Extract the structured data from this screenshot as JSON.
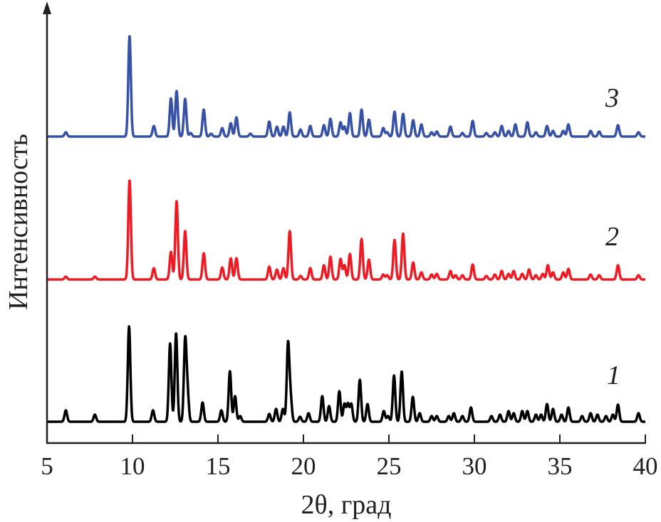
{
  "chart_data": {
    "type": "line",
    "title": "",
    "xlabel": "2θ, град",
    "ylabel": "Интенсивность",
    "xlim": [
      5,
      40
    ],
    "ylim": [
      0,
      618
    ],
    "x_ticks": [
      "5",
      "10",
      "15",
      "20",
      "25",
      "30",
      "35",
      "40"
    ],
    "x_tick_values": [
      5,
      10,
      15,
      20,
      25,
      30,
      35,
      40
    ],
    "y_ticks": [],
    "grid": false,
    "legend": "none; curves labelled inline at right",
    "peak_sigma_deg": 0.075,
    "series": [
      {
        "name": "1",
        "label": "1",
        "color": "#000000",
        "baseline": 30,
        "peaks": [
          [
            6.1,
            16
          ],
          [
            7.8,
            10
          ],
          [
            9.8,
            134
          ],
          [
            11.2,
            16
          ],
          [
            12.2,
            110
          ],
          [
            12.55,
            125
          ],
          [
            13.08,
            113
          ],
          [
            13.22,
            40
          ],
          [
            14.1,
            27
          ],
          [
            15.2,
            16
          ],
          [
            15.7,
            71
          ],
          [
            16.0,
            36
          ],
          [
            16.3,
            8
          ],
          [
            18.0,
            11
          ],
          [
            18.4,
            18
          ],
          [
            18.8,
            18
          ],
          [
            19.1,
            109
          ],
          [
            19.25,
            33
          ],
          [
            19.8,
            7
          ],
          [
            20.3,
            12
          ],
          [
            21.1,
            36
          ],
          [
            21.5,
            22
          ],
          [
            22.1,
            43
          ],
          [
            22.4,
            25
          ],
          [
            22.6,
            25
          ],
          [
            22.8,
            25
          ],
          [
            23.3,
            59
          ],
          [
            23.75,
            25
          ],
          [
            24.7,
            15
          ],
          [
            24.95,
            8
          ],
          [
            25.3,
            65
          ],
          [
            25.75,
            71
          ],
          [
            26.4,
            35
          ],
          [
            26.8,
            12
          ],
          [
            27.5,
            8
          ],
          [
            27.8,
            8
          ],
          [
            28.5,
            8
          ],
          [
            28.8,
            12
          ],
          [
            29.3,
            8
          ],
          [
            29.8,
            20
          ],
          [
            31.0,
            8
          ],
          [
            31.5,
            10
          ],
          [
            32.0,
            15
          ],
          [
            32.3,
            12
          ],
          [
            32.8,
            15
          ],
          [
            33.1,
            15
          ],
          [
            33.6,
            10
          ],
          [
            33.9,
            10
          ],
          [
            34.25,
            25
          ],
          [
            34.6,
            18
          ],
          [
            35.1,
            10
          ],
          [
            35.5,
            20
          ],
          [
            36.3,
            8
          ],
          [
            36.8,
            12
          ],
          [
            37.2,
            10
          ],
          [
            37.7,
            8
          ],
          [
            38.1,
            10
          ],
          [
            38.4,
            24
          ],
          [
            39.6,
            12
          ]
        ]
      },
      {
        "name": "2",
        "label": "2",
        "color": "#ed1c24",
        "baseline": 230,
        "peaks": [
          [
            6.1,
            4
          ],
          [
            7.8,
            4
          ],
          [
            9.83,
            140
          ],
          [
            11.25,
            16
          ],
          [
            12.25,
            39
          ],
          [
            12.58,
            110
          ],
          [
            13.08,
            68
          ],
          [
            14.17,
            37
          ],
          [
            15.25,
            17
          ],
          [
            15.75,
            30
          ],
          [
            16.08,
            30
          ],
          [
            18.0,
            18
          ],
          [
            18.45,
            14
          ],
          [
            18.83,
            16
          ],
          [
            19.2,
            68
          ],
          [
            19.83,
            5
          ],
          [
            20.4,
            16
          ],
          [
            21.2,
            20
          ],
          [
            21.58,
            32
          ],
          [
            22.17,
            29
          ],
          [
            22.4,
            20
          ],
          [
            22.72,
            36
          ],
          [
            23.4,
            57
          ],
          [
            23.83,
            28
          ],
          [
            24.67,
            7
          ],
          [
            24.9,
            6
          ],
          [
            25.33,
            56
          ],
          [
            25.83,
            65
          ],
          [
            26.42,
            24
          ],
          [
            26.9,
            10
          ],
          [
            27.5,
            7
          ],
          [
            27.8,
            8
          ],
          [
            28.6,
            12
          ],
          [
            28.9,
            6
          ],
          [
            29.3,
            6
          ],
          [
            29.9,
            21
          ],
          [
            30.7,
            5
          ],
          [
            31.2,
            7
          ],
          [
            31.6,
            12
          ],
          [
            32.0,
            8
          ],
          [
            32.3,
            12
          ],
          [
            32.8,
            8
          ],
          [
            33.2,
            14
          ],
          [
            33.6,
            6
          ],
          [
            34.0,
            8
          ],
          [
            34.3,
            20
          ],
          [
            34.6,
            10
          ],
          [
            35.2,
            10
          ],
          [
            35.5,
            15
          ],
          [
            36.8,
            7
          ],
          [
            37.3,
            6
          ],
          [
            38.4,
            20
          ],
          [
            39.6,
            6
          ]
        ]
      },
      {
        "name": "3",
        "label": "3",
        "color": "#3651a5",
        "baseline": 431,
        "peaks": [
          [
            6.1,
            6
          ],
          [
            9.83,
            142
          ],
          [
            11.25,
            15
          ],
          [
            12.25,
            54
          ],
          [
            12.58,
            64
          ],
          [
            13.08,
            53
          ],
          [
            13.4,
            5
          ],
          [
            14.17,
            38
          ],
          [
            14.6,
            4
          ],
          [
            15.25,
            12
          ],
          [
            15.75,
            19
          ],
          [
            16.08,
            27
          ],
          [
            16.9,
            4
          ],
          [
            18.0,
            21
          ],
          [
            18.45,
            14
          ],
          [
            18.83,
            14
          ],
          [
            19.2,
            34
          ],
          [
            19.83,
            10
          ],
          [
            20.4,
            15
          ],
          [
            21.2,
            16
          ],
          [
            21.58,
            25
          ],
          [
            22.17,
            20
          ],
          [
            22.4,
            14
          ],
          [
            22.72,
            33
          ],
          [
            23.4,
            38
          ],
          [
            23.83,
            24
          ],
          [
            24.67,
            12
          ],
          [
            24.9,
            6
          ],
          [
            25.33,
            35
          ],
          [
            25.83,
            32
          ],
          [
            26.42,
            23
          ],
          [
            26.9,
            17
          ],
          [
            27.5,
            6
          ],
          [
            27.8,
            7
          ],
          [
            28.6,
            14
          ],
          [
            29.3,
            5
          ],
          [
            29.9,
            22
          ],
          [
            30.7,
            5
          ],
          [
            31.2,
            6
          ],
          [
            31.6,
            15
          ],
          [
            32.0,
            8
          ],
          [
            32.4,
            17
          ],
          [
            33.1,
            20
          ],
          [
            33.6,
            6
          ],
          [
            34.25,
            15
          ],
          [
            34.6,
            8
          ],
          [
            35.2,
            8
          ],
          [
            35.5,
            17
          ],
          [
            36.8,
            8
          ],
          [
            37.3,
            7
          ],
          [
            38.4,
            16
          ],
          [
            39.6,
            6
          ]
        ]
      }
    ]
  }
}
